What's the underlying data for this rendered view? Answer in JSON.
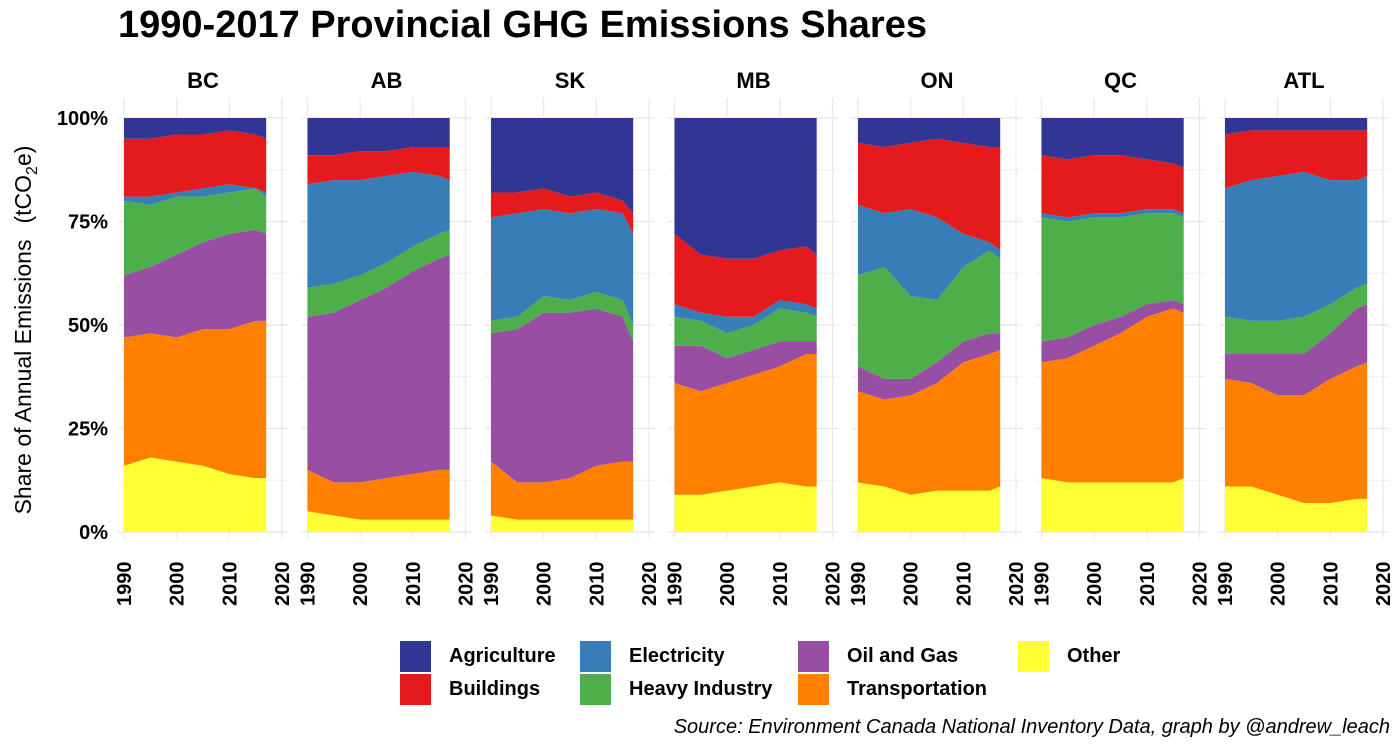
{
  "title": "1990-2017 Provincial GHG Emissions Shares",
  "source": "Source: Environment Canada National Inventory Data, graph by @andrew_leach",
  "chart_data": {
    "type": "area",
    "stacked": "percent",
    "ylabel": "Share of Annual Emissions",
    "ylabel_unit_prefix": "(tCO",
    "ylabel_unit_sub": "2",
    "ylabel_unit_suffix": "e)",
    "ylim": [
      0,
      1
    ],
    "y_ticks": [
      0,
      0.25,
      0.5,
      0.75,
      1
    ],
    "y_tick_labels": [
      "0%",
      "25%",
      "50%",
      "75%",
      "100%"
    ],
    "xlim": [
      1990,
      2020
    ],
    "x_ticks": [
      1990,
      2000,
      2010,
      2020
    ],
    "x_tick_labels": [
      "1990",
      "2000",
      "2010",
      "2020"
    ],
    "grid": true,
    "legend_position": "bottom",
    "stack_order_bottom_to_top": [
      "Other",
      "Transportation",
      "Oil and Gas",
      "Heavy Industry",
      "Electricity",
      "Buildings",
      "Agriculture"
    ],
    "colors": {
      "Agriculture": "#313695",
      "Buildings": "#e41a1c",
      "Electricity": "#377eb8",
      "Heavy Industry": "#4daf4a",
      "Oil and Gas": "#984ea3",
      "Transportation": "#ff7f00",
      "Other": "#ffff33"
    },
    "legend_order": [
      "Agriculture",
      "Buildings",
      "Electricity",
      "Heavy Industry",
      "Oil and Gas",
      "Transportation",
      "Other"
    ],
    "x": [
      1990,
      1995,
      2000,
      2005,
      2010,
      2015,
      2017
    ],
    "panels": [
      {
        "name": "BC",
        "cumulative": {
          "Other": [
            0.16,
            0.18,
            0.17,
            0.16,
            0.14,
            0.13,
            0.13
          ],
          "Transportation": [
            0.47,
            0.48,
            0.47,
            0.49,
            0.49,
            0.51,
            0.51
          ],
          "Oil and Gas": [
            0.62,
            0.64,
            0.67,
            0.7,
            0.72,
            0.73,
            0.72
          ],
          "Heavy Industry": [
            0.8,
            0.79,
            0.81,
            0.81,
            0.82,
            0.83,
            0.81
          ],
          "Electricity": [
            0.81,
            0.81,
            0.82,
            0.83,
            0.84,
            0.83,
            0.82
          ],
          "Buildings": [
            0.95,
            0.95,
            0.96,
            0.96,
            0.97,
            0.96,
            0.95
          ],
          "Agriculture": [
            1,
            1,
            1,
            1,
            1,
            1,
            1
          ]
        }
      },
      {
        "name": "AB",
        "cumulative": {
          "Other": [
            0.05,
            0.04,
            0.03,
            0.03,
            0.03,
            0.03,
            0.03
          ],
          "Transportation": [
            0.15,
            0.12,
            0.12,
            0.13,
            0.14,
            0.15,
            0.15
          ],
          "Oil and Gas": [
            0.52,
            0.53,
            0.56,
            0.59,
            0.63,
            0.66,
            0.67
          ],
          "Heavy Industry": [
            0.59,
            0.6,
            0.62,
            0.65,
            0.69,
            0.72,
            0.73
          ],
          "Electricity": [
            0.84,
            0.85,
            0.85,
            0.86,
            0.87,
            0.86,
            0.85
          ],
          "Buildings": [
            0.91,
            0.91,
            0.92,
            0.92,
            0.93,
            0.93,
            0.93
          ],
          "Agriculture": [
            1,
            1,
            1,
            1,
            1,
            1,
            1
          ]
        }
      },
      {
        "name": "SK",
        "cumulative": {
          "Other": [
            0.04,
            0.03,
            0.03,
            0.03,
            0.03,
            0.03,
            0.03
          ],
          "Transportation": [
            0.17,
            0.12,
            0.12,
            0.13,
            0.16,
            0.17,
            0.17
          ],
          "Oil and Gas": [
            0.48,
            0.49,
            0.53,
            0.53,
            0.54,
            0.52,
            0.46
          ],
          "Heavy Industry": [
            0.51,
            0.52,
            0.57,
            0.56,
            0.58,
            0.56,
            0.5
          ],
          "Electricity": [
            0.76,
            0.77,
            0.78,
            0.77,
            0.78,
            0.77,
            0.72
          ],
          "Buildings": [
            0.82,
            0.82,
            0.83,
            0.81,
            0.82,
            0.8,
            0.77
          ],
          "Agriculture": [
            1,
            1,
            1,
            1,
            1,
            1,
            1
          ]
        }
      },
      {
        "name": "MB",
        "cumulative": {
          "Other": [
            0.09,
            0.09,
            0.1,
            0.11,
            0.12,
            0.11,
            0.11
          ],
          "Transportation": [
            0.36,
            0.34,
            0.36,
            0.38,
            0.4,
            0.43,
            0.43
          ],
          "Oil and Gas": [
            0.45,
            0.45,
            0.42,
            0.44,
            0.46,
            0.46,
            0.46
          ],
          "Heavy Industry": [
            0.52,
            0.51,
            0.48,
            0.5,
            0.54,
            0.53,
            0.52
          ],
          "Electricity": [
            0.55,
            0.53,
            0.52,
            0.52,
            0.56,
            0.55,
            0.54
          ],
          "Buildings": [
            0.72,
            0.67,
            0.66,
            0.66,
            0.68,
            0.69,
            0.67
          ],
          "Agriculture": [
            1,
            1,
            1,
            1,
            1,
            1,
            1
          ]
        }
      },
      {
        "name": "ON",
        "cumulative": {
          "Other": [
            0.12,
            0.11,
            0.09,
            0.1,
            0.1,
            0.1,
            0.11
          ],
          "Transportation": [
            0.34,
            0.32,
            0.33,
            0.36,
            0.41,
            0.43,
            0.44
          ],
          "Oil and Gas": [
            0.4,
            0.37,
            0.37,
            0.41,
            0.46,
            0.48,
            0.48
          ],
          "Heavy Industry": [
            0.62,
            0.64,
            0.57,
            0.56,
            0.64,
            0.68,
            0.66
          ],
          "Electricity": [
            0.79,
            0.77,
            0.78,
            0.76,
            0.72,
            0.7,
            0.68
          ],
          "Buildings": [
            0.94,
            0.93,
            0.94,
            0.95,
            0.94,
            0.93,
            0.93
          ],
          "Agriculture": [
            1,
            1,
            1,
            1,
            1,
            1,
            1
          ]
        }
      },
      {
        "name": "QC",
        "cumulative": {
          "Other": [
            0.13,
            0.12,
            0.12,
            0.12,
            0.12,
            0.12,
            0.13
          ],
          "Transportation": [
            0.41,
            0.42,
            0.45,
            0.48,
            0.52,
            0.54,
            0.53
          ],
          "Oil and Gas": [
            0.46,
            0.47,
            0.5,
            0.52,
            0.55,
            0.56,
            0.55
          ],
          "Heavy Industry": [
            0.76,
            0.75,
            0.76,
            0.76,
            0.77,
            0.77,
            0.76
          ],
          "Electricity": [
            0.77,
            0.76,
            0.77,
            0.77,
            0.78,
            0.78,
            0.77
          ],
          "Buildings": [
            0.91,
            0.9,
            0.91,
            0.91,
            0.9,
            0.89,
            0.88
          ],
          "Agriculture": [
            1,
            1,
            1,
            1,
            1,
            1,
            1
          ]
        }
      },
      {
        "name": "ATL",
        "cumulative": {
          "Other": [
            0.11,
            0.11,
            0.09,
            0.07,
            0.07,
            0.08,
            0.08
          ],
          "Transportation": [
            0.37,
            0.36,
            0.33,
            0.33,
            0.37,
            0.4,
            0.41
          ],
          "Oil and Gas": [
            0.43,
            0.43,
            0.43,
            0.43,
            0.48,
            0.54,
            0.55
          ],
          "Heavy Industry": [
            0.52,
            0.51,
            0.51,
            0.52,
            0.55,
            0.59,
            0.6
          ],
          "Electricity": [
            0.83,
            0.85,
            0.86,
            0.87,
            0.85,
            0.85,
            0.86
          ],
          "Buildings": [
            0.96,
            0.97,
            0.97,
            0.97,
            0.97,
            0.97,
            0.97
          ],
          "Agriculture": [
            1,
            1,
            1,
            1,
            1,
            1,
            1
          ]
        }
      }
    ]
  }
}
